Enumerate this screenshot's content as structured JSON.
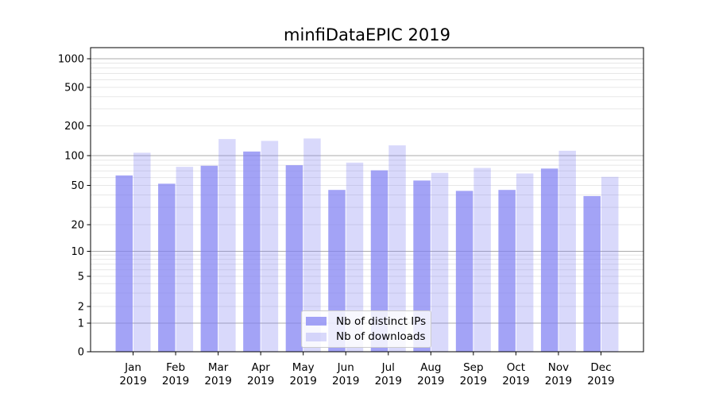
{
  "chart_data": {
    "type": "bar",
    "title": "minfiDataEPIC 2019",
    "categories": [
      "Jan",
      "Feb",
      "Mar",
      "Apr",
      "May",
      "Jun",
      "Jul",
      "Aug",
      "Sep",
      "Oct",
      "Nov",
      "Dec"
    ],
    "category_year": "2019",
    "series": [
      {
        "name": "Nb of distinct IPs",
        "color": "rgba(128,128,242,0.72)",
        "values": [
          63,
          52,
          79,
          110,
          80,
          45,
          71,
          56,
          44,
          45,
          74,
          39
        ]
      },
      {
        "name": "Nb of downloads",
        "color": "rgba(128,128,242,0.30)",
        "values": [
          107,
          77,
          147,
          141,
          149,
          85,
          127,
          67,
          75,
          66,
          112,
          61
        ]
      }
    ],
    "yticks": [
      0,
      1,
      2,
      5,
      10,
      20,
      50,
      100,
      200,
      500,
      1000
    ],
    "ylim": [
      0,
      1300
    ],
    "yscale": "log",
    "grid": true,
    "legend_position": "lower center",
    "colors": {
      "grid_major": "#ababab",
      "grid_minor": "#e7e7e7",
      "axis": "#000000",
      "background": "#ffffff"
    }
  }
}
